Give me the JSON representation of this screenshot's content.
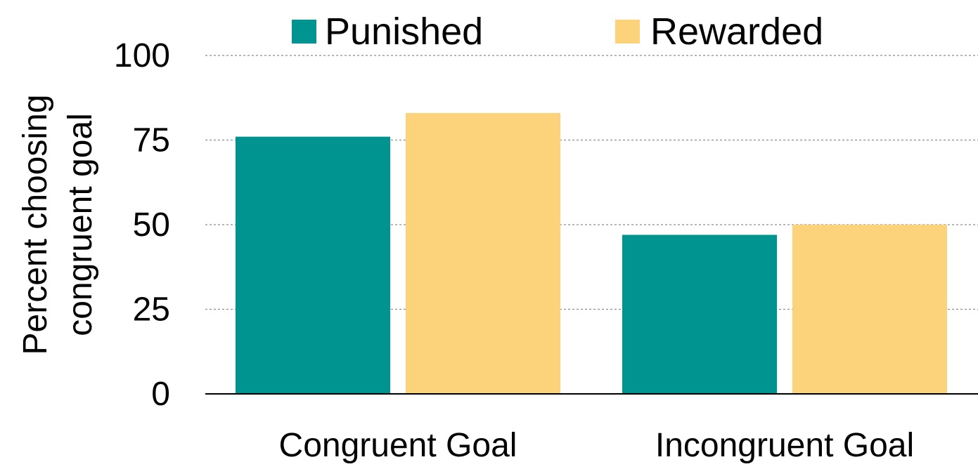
{
  "chart_data": {
    "type": "bar",
    "categories": [
      "Congruent Goal",
      "Incongruent Goal"
    ],
    "series": [
      {
        "name": "Punished",
        "values": [
          76,
          47
        ],
        "color": "#009490"
      },
      {
        "name": "Rewarded",
        "values": [
          83,
          50
        ],
        "color": "#FCD27A"
      }
    ],
    "ylabel": [
      "Percent choosing",
      "congruent goal"
    ],
    "xlabel": "",
    "ylim": [
      0,
      100
    ],
    "yticks": [
      0,
      25,
      50,
      75,
      100
    ],
    "grid": true,
    "legend_position": "top"
  }
}
